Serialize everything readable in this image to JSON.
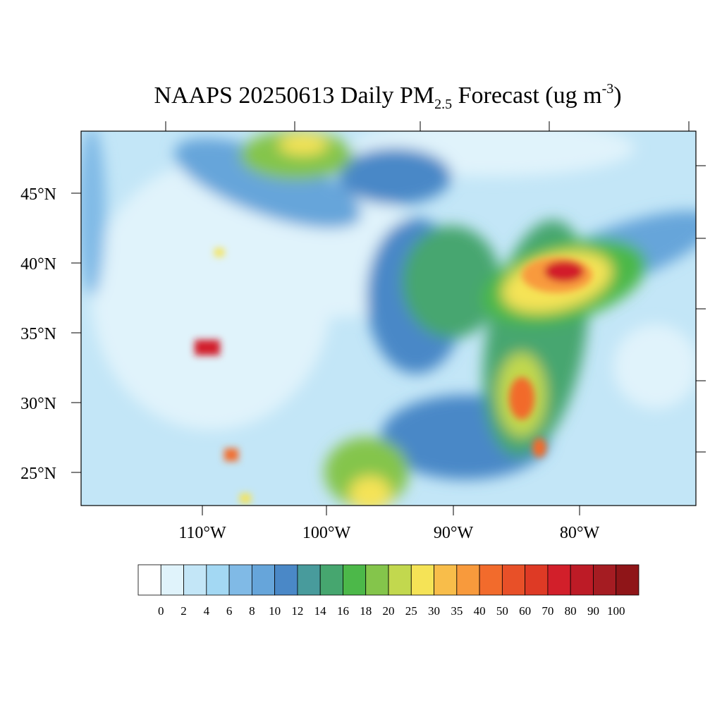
{
  "title": {
    "main": "NAAPS 20250613 Daily PM",
    "sub": "2.5",
    "rest": " Forecast (ug m",
    "sup": "-3",
    "end": ")"
  },
  "lat_labels": [
    "45°N",
    "40°N",
    "35°N",
    "30°N",
    "25°N"
  ],
  "lon_labels": [
    "110°W",
    "100°W",
    "90°W",
    "80°W"
  ],
  "colorbar": {
    "colors": [
      "#ffffff",
      "#e0f3fb",
      "#c3e6f7",
      "#a3d8f3",
      "#80bae6",
      "#66a5da",
      "#4a88c7",
      "#489b9c",
      "#46a66f",
      "#4cb849",
      "#84c54b",
      "#c2d84e",
      "#f5e356",
      "#f8bd4a",
      "#f89a3c",
      "#f26b2c",
      "#e85028",
      "#de3a25",
      "#d21f2a",
      "#bd1b26",
      "#a51c22",
      "#8f1518"
    ],
    "labels": [
      "0",
      "2",
      "4",
      "6",
      "8",
      "10",
      "12",
      "14",
      "16",
      "18",
      "20",
      "25",
      "30",
      "35",
      "40",
      "50",
      "60",
      "70",
      "80",
      "90",
      "100"
    ]
  }
}
